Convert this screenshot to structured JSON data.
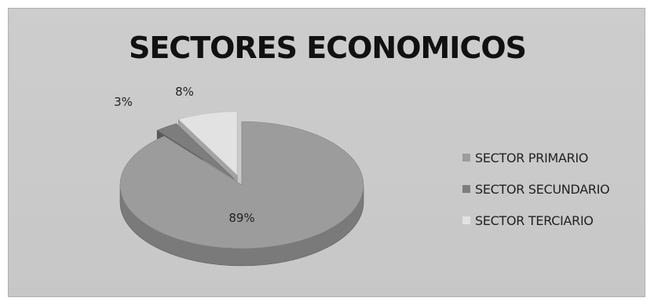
{
  "chart_data": {
    "type": "pie",
    "title": "SECTORES ECONOMICOS",
    "categories": [
      "SECTOR PRIMARIO",
      "SECTOR SECUNDARIO",
      "SECTOR TERCIARIO"
    ],
    "values": [
      89,
      3,
      8
    ],
    "data_labels": [
      "89%",
      "3%",
      "8%"
    ],
    "colors": [
      "#9c9c9c",
      "#7d7d7d",
      "#e2e2e2"
    ],
    "style": "3d-exploded",
    "legend_position": "right"
  }
}
